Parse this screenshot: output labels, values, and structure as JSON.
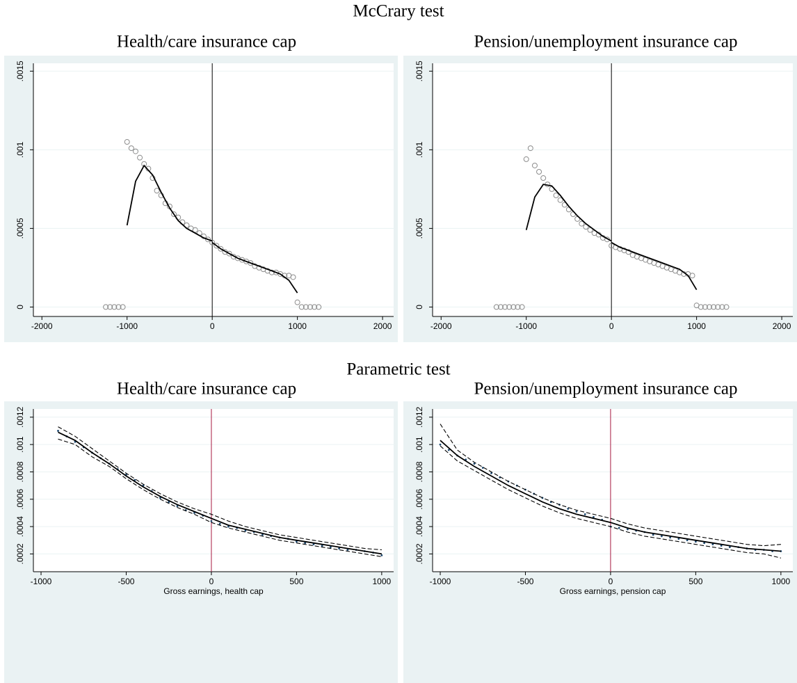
{
  "sections": [
    {
      "title": "McCrary test"
    },
    {
      "title": "Parametric test"
    }
  ],
  "chart_data": [
    {
      "type": "scatter",
      "title": "Health/care insurance cap",
      "xlim": [
        -2100,
        2130
      ],
      "ylim": [
        -6e-05,
        0.00155
      ],
      "xticks": [
        -2000,
        -1000,
        0,
        1000,
        2000
      ],
      "yticks": [
        0,
        {
          "value": 0.0005,
          "label": ".0005"
        },
        {
          "value": 0.001,
          "label": ".001"
        },
        {
          "value": 0.0015,
          "label": ".0015"
        }
      ],
      "grid": true,
      "vline": {
        "value": 0,
        "color": "#000000"
      },
      "series": [
        {
          "style": "hollow-circle",
          "color": "#8c8c8c",
          "x": [
            -1250,
            -1200,
            -1150,
            -1100,
            -1050,
            -1000,
            -950,
            -900,
            -850,
            -800,
            -750,
            -700,
            -650,
            -600,
            -550,
            -500,
            -450,
            -400,
            -350,
            -300,
            -250,
            -200,
            -150,
            -100,
            -50,
            0,
            50,
            100,
            150,
            200,
            250,
            300,
            350,
            400,
            450,
            500,
            550,
            600,
            650,
            700,
            750,
            800,
            850,
            900,
            950,
            1000,
            1050,
            1100,
            1150,
            1200,
            1250
          ],
          "values": [
            0,
            0,
            0,
            0,
            0,
            0.00105,
            0.00101,
            0.00099,
            0.00095,
            0.00091,
            0.00088,
            0.00082,
            0.00074,
            0.00071,
            0.00066,
            0.00064,
            0.00059,
            0.00057,
            0.00054,
            0.00052,
            0.0005,
            0.00049,
            0.00047,
            0.00045,
            0.00043,
            0.00041,
            0.00039,
            0.00037,
            0.00035,
            0.00034,
            0.00032,
            0.00031,
            0.0003,
            0.00029,
            0.00028,
            0.00026,
            0.00025,
            0.00024,
            0.00023,
            0.00022,
            0.00022,
            0.00021,
            0.0002,
            0.0002,
            0.00019,
            3e-05,
            0,
            0,
            0,
            0,
            0
          ]
        },
        {
          "style": "line",
          "color": "#000000",
          "x": [
            -1000,
            -900,
            -800,
            -700,
            -600,
            -500,
            -400,
            -300,
            -200,
            -100,
            0,
            null,
            0,
            100,
            200,
            300,
            400,
            500,
            600,
            700,
            800,
            900,
            1000
          ],
          "values": [
            0.00052,
            0.0008,
            0.0009,
            0.00084,
            0.00073,
            0.00063,
            0.00055,
            0.0005,
            0.00047,
            0.00044,
            0.00042,
            null,
            0.00041,
            0.00037,
            0.00034,
            0.00031,
            0.00029,
            0.00027,
            0.00025,
            0.00023,
            0.00021,
            0.00017,
            9e-05
          ]
        }
      ]
    },
    {
      "type": "scatter",
      "title": "Pension/unemployment insurance cap",
      "xlim": [
        -2100,
        2130
      ],
      "ylim": [
        -6e-05,
        0.00155
      ],
      "xticks": [
        -2000,
        -1000,
        0,
        1000,
        2000
      ],
      "yticks": [
        0,
        {
          "value": 0.0005,
          "label": ".0005"
        },
        {
          "value": 0.001,
          "label": ".001"
        },
        {
          "value": 0.0015,
          "label": ".0015"
        }
      ],
      "grid": true,
      "vline": {
        "value": 0,
        "color": "#000000"
      },
      "series": [
        {
          "style": "hollow-circle",
          "color": "#8c8c8c",
          "x": [
            -1350,
            -1300,
            -1250,
            -1200,
            -1150,
            -1100,
            -1050,
            -1000,
            -950,
            -900,
            -850,
            -800,
            -750,
            -700,
            -650,
            -600,
            -550,
            -500,
            -450,
            -400,
            -350,
            -300,
            -250,
            -200,
            -150,
            -100,
            -50,
            0,
            50,
            100,
            150,
            200,
            250,
            300,
            350,
            400,
            450,
            500,
            550,
            600,
            650,
            700,
            750,
            800,
            850,
            900,
            950,
            1000,
            1050,
            1100,
            1150,
            1200,
            1250,
            1300,
            1350
          ],
          "values": [
            0,
            0,
            0,
            0,
            0,
            0,
            0,
            0.00094,
            0.00101,
            0.0009,
            0.00086,
            0.00082,
            0.00078,
            0.00075,
            0.00071,
            0.00068,
            0.00065,
            0.00062,
            0.00059,
            0.00056,
            0.00053,
            0.00051,
            0.00049,
            0.00047,
            0.00046,
            0.00044,
            0.00043,
            0.00039,
            0.00038,
            0.00037,
            0.00036,
            0.00035,
            0.00033,
            0.00032,
            0.00031,
            0.0003,
            0.00029,
            0.00028,
            0.00027,
            0.00026,
            0.00025,
            0.00024,
            0.00023,
            0.00022,
            0.00021,
            0.00021,
            0.0002,
            1e-05,
            0,
            0,
            0,
            0,
            0,
            0,
            0
          ]
        },
        {
          "style": "line",
          "color": "#000000",
          "x": [
            -1000,
            -900,
            -800,
            -700,
            -600,
            -500,
            -400,
            -300,
            -200,
            -100,
            0,
            null,
            0,
            100,
            200,
            300,
            400,
            500,
            600,
            700,
            800,
            900,
            1000
          ],
          "values": [
            0.00049,
            0.0007,
            0.00078,
            0.00077,
            0.00071,
            0.00064,
            0.00058,
            0.00053,
            0.00049,
            0.00045,
            0.00042,
            null,
            0.00041,
            0.00038,
            0.00036,
            0.00034,
            0.00032,
            0.0003,
            0.00028,
            0.00026,
            0.00024,
            0.0002,
            0.00011
          ]
        }
      ]
    },
    {
      "type": "scatter",
      "title": "Health/care insurance cap",
      "xlabel": "Gross earnings, health cap",
      "xlim": [
        -1045,
        1070
      ],
      "ylim": [
        7e-05,
        0.00126
      ],
      "xticks": [
        -1000,
        -500,
        0,
        500,
        1000
      ],
      "yticks": [
        {
          "value": 0.0002,
          "label": ".0002"
        },
        {
          "value": 0.0004,
          "label": ".0004"
        },
        {
          "value": 0.0006,
          "label": ".0006"
        },
        {
          "value": 0.0008,
          "label": ".0008"
        },
        {
          "value": 0.001,
          "label": ".001"
        },
        {
          "value": 0.0012,
          "label": ".0012"
        }
      ],
      "grid": true,
      "vline": {
        "value": 0,
        "color": "#a6173f"
      },
      "series": [
        {
          "style": "dot",
          "color": "#1a476f",
          "x": [
            -900,
            -850,
            -800,
            -750,
            -700,
            -650,
            -600,
            -550,
            -500,
            -450,
            -400,
            -350,
            -300,
            -250,
            -200,
            -150,
            -100,
            -50,
            0,
            50,
            100,
            150,
            200,
            250,
            300,
            350,
            400,
            450,
            500,
            550,
            600,
            650,
            700,
            750,
            800,
            850,
            900,
            950,
            1000
          ],
          "values": [
            0.0011,
            0.00106,
            0.00102,
            0.00098,
            0.00094,
            0.0009,
            0.00086,
            0.00082,
            0.00078,
            0.00074,
            0.0007,
            0.00066,
            0.00061,
            0.00058,
            0.00055,
            0.00052,
            0.0005,
            0.00048,
            0.00044,
            0.00042,
            0.0004,
            0.00039,
            0.00037,
            0.00036,
            0.00034,
            0.00033,
            0.00032,
            0.00031,
            0.00029,
            0.00028,
            0.00027,
            0.00026,
            0.00025,
            0.00024,
            0.00023,
            0.00023,
            0.00022,
            0.00021,
            0.00019
          ]
        },
        {
          "style": "line",
          "color": "#000000",
          "x": [
            -900,
            -800,
            -700,
            -600,
            -500,
            -400,
            -300,
            -200,
            -100,
            0,
            100,
            200,
            300,
            400,
            500,
            600,
            700,
            800,
            900,
            1000
          ],
          "values": [
            0.00109,
            0.00103,
            0.00094,
            0.00086,
            0.00077,
            0.00069,
            0.00062,
            0.00056,
            0.00051,
            0.00046,
            0.00041,
            0.00038,
            0.00035,
            0.00032,
            0.0003,
            0.00028,
            0.00026,
            0.00024,
            0.00022,
            0.0002
          ]
        },
        {
          "style": "dash",
          "color": "#000000",
          "x": [
            -900,
            -800,
            -700,
            -600,
            -500,
            -400,
            -300,
            -200,
            -100,
            0,
            100,
            200,
            300,
            400,
            500,
            600,
            700,
            800,
            900,
            1000
          ],
          "values": [
            0.00113,
            0.00106,
            0.00097,
            0.00088,
            0.00079,
            0.00071,
            0.00064,
            0.00058,
            0.00053,
            0.00049,
            0.00044,
            0.0004,
            0.00037,
            0.00034,
            0.00032,
            0.0003,
            0.00028,
            0.00026,
            0.00024,
            0.00023
          ]
        },
        {
          "style": "dash",
          "color": "#000000",
          "x": [
            -900,
            -800,
            -700,
            -600,
            -500,
            -400,
            -300,
            -200,
            -100,
            0,
            100,
            200,
            300,
            400,
            500,
            600,
            700,
            800,
            900,
            1000
          ],
          "values": [
            0.00104,
            0.001,
            0.00091,
            0.00084,
            0.00075,
            0.00067,
            0.0006,
            0.00054,
            0.00049,
            0.00043,
            0.00039,
            0.00036,
            0.00033,
            0.0003,
            0.00028,
            0.00026,
            0.00024,
            0.00022,
            0.0002,
            0.00018
          ]
        }
      ]
    },
    {
      "type": "scatter",
      "title": "Pension/unemployment insurance cap",
      "xlabel": "Gross earnings, pension cap",
      "xlim": [
        -1045,
        1070
      ],
      "ylim": [
        7e-05,
        0.00126
      ],
      "xticks": [
        -1000,
        -500,
        0,
        500,
        1000
      ],
      "yticks": [
        {
          "value": 0.0002,
          "label": ".0002"
        },
        {
          "value": 0.0004,
          "label": ".0004"
        },
        {
          "value": 0.0006,
          "label": ".0006"
        },
        {
          "value": 0.0008,
          "label": ".0008"
        },
        {
          "value": 0.001,
          "label": ".001"
        },
        {
          "value": 0.0012,
          "label": ".0012"
        }
      ],
      "grid": true,
      "vline": {
        "value": 0,
        "color": "#a6173f"
      },
      "series": [
        {
          "style": "dot",
          "color": "#1a476f",
          "x": [
            -1000,
            -950,
            -900,
            -850,
            -800,
            -750,
            -700,
            -650,
            -600,
            -550,
            -500,
            -450,
            -400,
            -350,
            -300,
            -250,
            -200,
            -150,
            -100,
            -50,
            0,
            50,
            100,
            150,
            200,
            250,
            300,
            350,
            400,
            450,
            500,
            550,
            600,
            650,
            700,
            750,
            800,
            850,
            900,
            950,
            1000
          ],
          "values": [
            0.001,
            0.00096,
            0.00092,
            0.00089,
            0.00086,
            0.00083,
            0.00079,
            0.00076,
            0.00073,
            0.0007,
            0.00067,
            0.00064,
            0.00061,
            0.00058,
            0.00056,
            0.00053,
            0.00051,
            0.00049,
            0.00047,
            0.00045,
            0.0004,
            0.00039,
            0.00038,
            0.00037,
            0.00036,
            0.00034,
            0.00033,
            0.00032,
            0.00031,
            0.0003,
            0.00029,
            0.00028,
            0.00027,
            0.00026,
            0.00025,
            0.00025,
            0.00024,
            0.00023,
            0.00023,
            0.00022,
            0.00022
          ]
        },
        {
          "style": "line",
          "color": "#000000",
          "x": [
            -1000,
            -900,
            -800,
            -700,
            -600,
            -500,
            -400,
            -300,
            -200,
            -100,
            0,
            100,
            200,
            300,
            400,
            500,
            600,
            700,
            800,
            900,
            1000
          ],
          "values": [
            0.00103,
            0.00092,
            0.00084,
            0.00077,
            0.0007,
            0.00064,
            0.00058,
            0.00053,
            0.00049,
            0.00046,
            0.00043,
            0.00039,
            0.00036,
            0.00034,
            0.00032,
            0.0003,
            0.00028,
            0.00026,
            0.00024,
            0.00023,
            0.00022
          ]
        },
        {
          "style": "dash",
          "color": "#000000",
          "x": [
            -1000,
            -900,
            -800,
            -700,
            -600,
            -500,
            -400,
            -300,
            -200,
            -100,
            0,
            100,
            200,
            300,
            400,
            500,
            600,
            700,
            800,
            900,
            1000
          ],
          "values": [
            0.00115,
            0.00096,
            0.00087,
            0.0008,
            0.00073,
            0.00067,
            0.00061,
            0.00056,
            0.00052,
            0.00049,
            0.00046,
            0.00042,
            0.00039,
            0.00037,
            0.00035,
            0.00033,
            0.00031,
            0.00029,
            0.00027,
            0.00026,
            0.00027
          ]
        },
        {
          "style": "dash",
          "color": "#000000",
          "x": [
            -1000,
            -900,
            -800,
            -700,
            -600,
            -500,
            -400,
            -300,
            -200,
            -100,
            0,
            100,
            200,
            300,
            400,
            500,
            600,
            700,
            800,
            900,
            1000
          ],
          "values": [
            0.00099,
            0.00088,
            0.00081,
            0.00074,
            0.00067,
            0.00061,
            0.00055,
            0.0005,
            0.00046,
            0.00043,
            0.0004,
            0.00036,
            0.00033,
            0.00031,
            0.00029,
            0.00027,
            0.00025,
            0.00023,
            0.00021,
            0.0002,
            0.00017
          ]
        }
      ]
    }
  ]
}
